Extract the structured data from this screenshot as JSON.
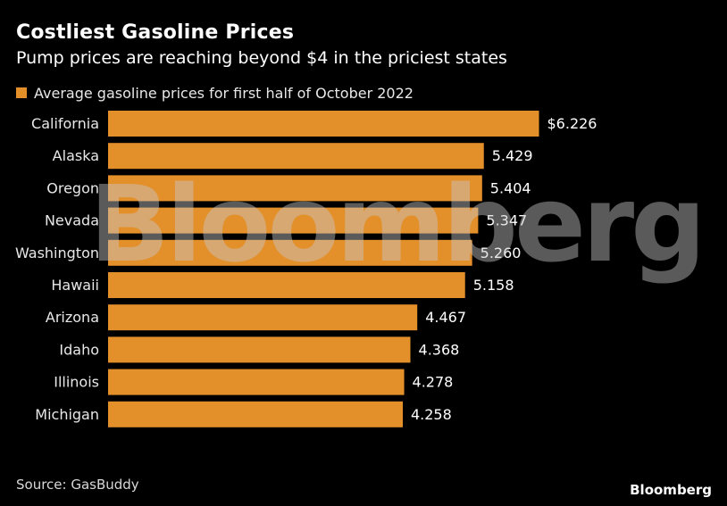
{
  "header": {
    "title": "Costliest Gasoline Prices",
    "subtitle": "Pump prices are reaching beyond $4 in the priciest states"
  },
  "footer": {
    "source": "Source: GasBuddy",
    "logo": "Bloomberg"
  },
  "watermark": "Bloomberg",
  "colors": {
    "bar": "#e38f2a",
    "background": "#000000",
    "text": "#ffffff"
  },
  "chart_data": {
    "type": "bar",
    "orientation": "horizontal",
    "title": "Costliest Gasoline Prices",
    "subtitle": "Pump prices are reaching beyond $4 in the priciest states",
    "legend": [
      "Average gasoline prices for first half of October 2022"
    ],
    "legend_position": "top-left",
    "grid": false,
    "xlim": [
      0,
      6.8
    ],
    "categories": [
      "California",
      "Alaska",
      "Oregon",
      "Nevada",
      "Washington",
      "Hawaii",
      "Arizona",
      "Idaho",
      "Illinois",
      "Michigan"
    ],
    "values": [
      6.226,
      5.429,
      5.404,
      5.347,
      5.26,
      5.158,
      4.467,
      4.368,
      4.278,
      4.258
    ],
    "data_labels": [
      "$6.226",
      "5.429",
      "5.404",
      "5.347",
      "5.260",
      "5.158",
      "4.467",
      "4.368",
      "4.278",
      "4.258"
    ]
  }
}
